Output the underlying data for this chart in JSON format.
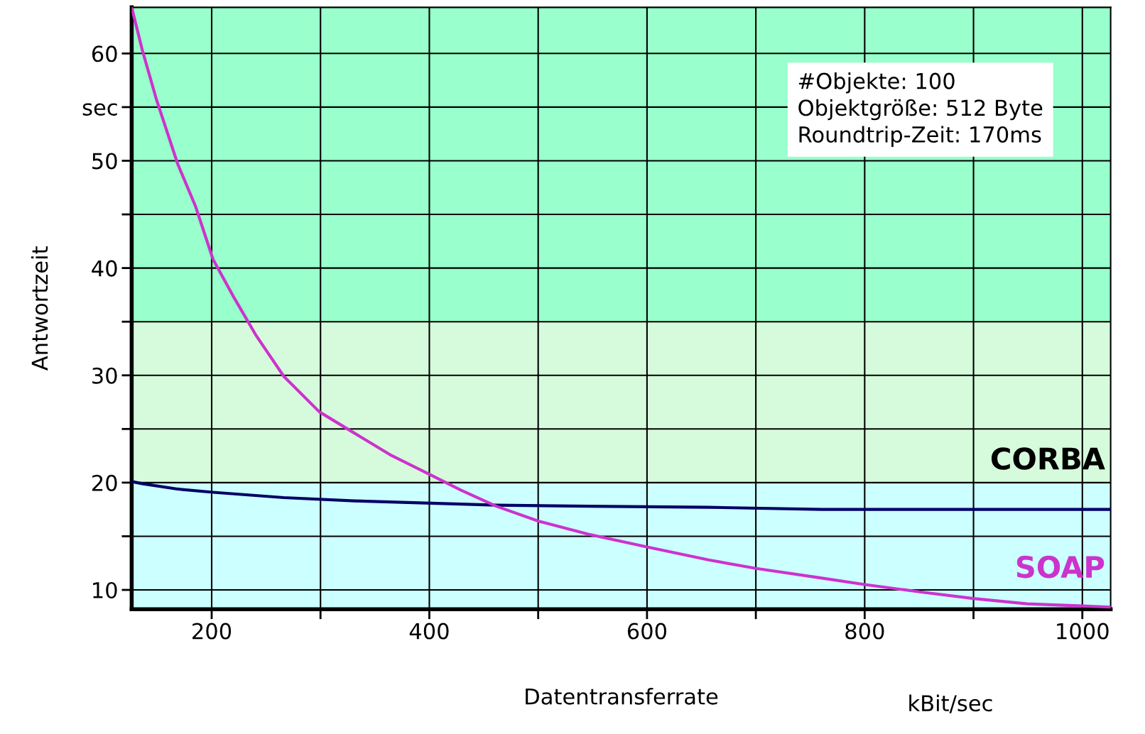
{
  "chart_data": {
    "type": "line",
    "xlabel": "Datentransferrate",
    "ylabel": "Antwortzeit",
    "series": [
      {
        "name": "CORBA",
        "color": "#000066",
        "x": [
          126.5,
          136.3,
          168.8,
          201.3,
          266.3,
          331.4,
          396.4,
          461.5,
          546,
          656.6,
          760.7,
          1026
        ],
        "values": [
          20.1,
          19.9,
          19.4,
          19.1,
          18.6,
          18.3,
          18.1,
          17.9,
          17.8,
          17.7,
          17.5,
          17.5
        ]
      },
      {
        "name": "SOAP",
        "color": "#cc33cc",
        "x": [
          126.5,
          136.3,
          149.3,
          168.8,
          185,
          201.3,
          220.8,
          240.3,
          266.3,
          298.9,
          331.4,
          363.9,
          399.7,
          428.9,
          461.5,
          500.5,
          546,
          600,
          656.6,
          700.2,
          754.1,
          800.3,
          851.7,
          899.8,
          949.3,
          1000,
          1026
        ],
        "values": [
          64.3,
          60.3,
          55.7,
          49.7,
          45.8,
          40.8,
          37.2,
          33.8,
          29.9,
          26.6,
          24.6,
          22.6,
          20.8,
          19.3,
          17.8,
          16.4,
          15.2,
          14.0,
          12.8,
          12.0,
          11.2,
          10.5,
          9.8,
          9.2,
          8.7,
          8.5,
          8.4
        ]
      }
    ],
    "xlim": [
      126.5,
      1026
    ],
    "ylim": [
      8.2,
      64.3
    ],
    "xticks": [
      200,
      {
        "value": 300,
        "label": null
      },
      400,
      {
        "value": 500,
        "label": null
      },
      600,
      {
        "value": 700,
        "label": null
      },
      800,
      {
        "value": 900,
        "label": null
      },
      1000
    ],
    "yticks": [
      10,
      {
        "value": 15,
        "label": null
      },
      20,
      {
        "value": 25,
        "label": null
      },
      30,
      {
        "value": 35,
        "label": null
      },
      40,
      {
        "value": 45,
        "label": null
      },
      50,
      {
        "value": 55,
        "label": "sec"
      },
      60
    ],
    "grid": true,
    "legend": false,
    "marker": "none",
    "line_style": "solid",
    "bands": [
      {
        "axis": "y",
        "from": 35,
        "to": 64.3,
        "color": "#99ffcc"
      },
      {
        "axis": "y",
        "from": 20,
        "to": 35,
        "color": "#d6fbdc"
      },
      {
        "axis": "y",
        "from": 8.2,
        "to": 20,
        "color": "#ccffff"
      }
    ],
    "annotations": [
      "#Objekte: 100\nObjektgröße: 512 Byte\nRoundtrip-Zeit: 170ms",
      "kBit/sec"
    ]
  }
}
